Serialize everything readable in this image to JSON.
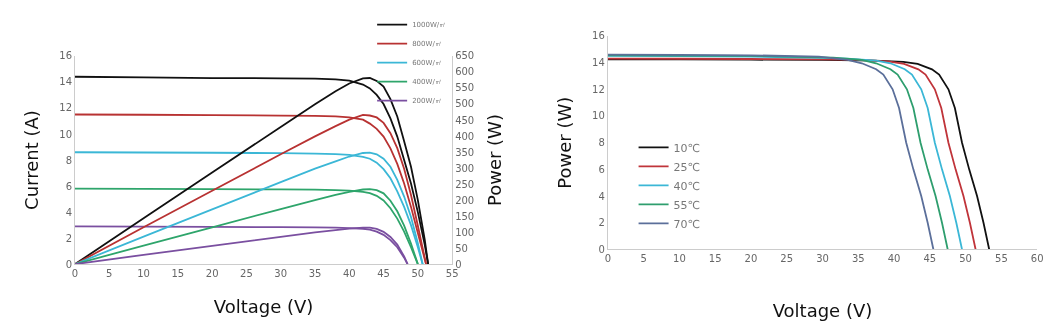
{
  "chart_data": [
    {
      "type": "line",
      "xlabel": "Voltage (V)",
      "ylabel": "Current (A)",
      "y2label": "Power (W)",
      "xlim": [
        0,
        55
      ],
      "xticks": [
        0,
        5,
        10,
        15,
        20,
        25,
        30,
        35,
        40,
        45,
        50,
        55
      ],
      "ylim": [
        0,
        16
      ],
      "yticks": [
        0,
        2,
        4,
        6,
        8,
        10,
        12,
        14,
        16
      ],
      "y2lim": [
        0,
        650
      ],
      "y2ticks": [
        0,
        50,
        100,
        150,
        200,
        250,
        300,
        350,
        400,
        450,
        500,
        550,
        600,
        650
      ],
      "legend": "top right",
      "marker": "none",
      "line_style": "solid",
      "series": [
        {
          "name": "1000W/㎡",
          "color": "#111111",
          "x": [
            0,
            10,
            20,
            30,
            35,
            38,
            40,
            42,
            43,
            44,
            45,
            46,
            47,
            48,
            49,
            50,
            51,
            51.5
          ],
          "values": [
            14.4,
            14.35,
            14.3,
            14.28,
            14.25,
            14.2,
            14.1,
            13.8,
            13.5,
            13.0,
            12.3,
            11.2,
            9.8,
            8.0,
            6.2,
            4.0,
            1.5,
            0
          ]
        },
        {
          "name": "800W/㎡",
          "color": "#b83232",
          "x": [
            0,
            10,
            20,
            30,
            35,
            38,
            40,
            42,
            43,
            44,
            45,
            46,
            47,
            48,
            49,
            50,
            51.2
          ],
          "values": [
            11.5,
            11.48,
            11.45,
            11.42,
            11.4,
            11.35,
            11.28,
            11.1,
            10.8,
            10.4,
            9.8,
            8.9,
            7.7,
            6.2,
            4.4,
            2.4,
            0
          ]
        },
        {
          "name": "600W/㎡",
          "color": "#3bb7d6",
          "x": [
            0,
            10,
            20,
            30,
            35,
            38,
            40,
            42,
            43,
            44,
            45,
            46,
            47,
            48,
            49,
            50,
            50.7
          ],
          "values": [
            8.6,
            8.58,
            8.56,
            8.53,
            8.5,
            8.46,
            8.4,
            8.25,
            8.1,
            7.8,
            7.3,
            6.6,
            5.6,
            4.4,
            3.0,
            1.3,
            0
          ]
        },
        {
          "name": "400W/㎡",
          "color": "#2ea56b",
          "x": [
            0,
            10,
            20,
            30,
            35,
            38,
            40,
            42,
            43,
            44,
            45,
            46,
            47,
            48,
            49,
            50
          ],
          "values": [
            5.8,
            5.78,
            5.76,
            5.74,
            5.72,
            5.69,
            5.65,
            5.55,
            5.45,
            5.25,
            4.9,
            4.3,
            3.5,
            2.5,
            1.3,
            0
          ]
        },
        {
          "name": "200W/㎡",
          "color": "#7a4fa0",
          "x": [
            0,
            10,
            20,
            30,
            35,
            38,
            40,
            42,
            43,
            44,
            45,
            46,
            47,
            48,
            48.5
          ],
          "values": [
            2.9,
            2.88,
            2.86,
            2.84,
            2.82,
            2.8,
            2.77,
            2.72,
            2.65,
            2.5,
            2.25,
            1.85,
            1.3,
            0.5,
            0
          ]
        },
        {
          "color": "#111111",
          "axis": "y2",
          "x": [
            0,
            10,
            20,
            30,
            35,
            38,
            40,
            42,
            43,
            44,
            45,
            46,
            47,
            48,
            49,
            50,
            51,
            51.5
          ],
          "values": [
            0,
            143,
            286,
            428,
            499,
            540,
            564,
            580,
            581,
            572,
            554,
            515,
            461,
            384,
            304,
            200,
            77,
            0
          ]
        },
        {
          "color": "#b83232",
          "axis": "y2",
          "x": [
            0,
            10,
            20,
            30,
            35,
            38,
            40,
            42,
            43,
            44,
            45,
            46,
            47,
            48,
            49,
            50,
            51.2
          ],
          "values": [
            0,
            115,
            229,
            343,
            399,
            431,
            451,
            466,
            464,
            458,
            441,
            409,
            362,
            298,
            216,
            120,
            0
          ]
        },
        {
          "color": "#3bb7d6",
          "axis": "y2",
          "x": [
            0,
            10,
            20,
            30,
            35,
            38,
            40,
            42,
            43,
            44,
            45,
            46,
            47,
            48,
            49,
            50,
            50.7
          ],
          "values": [
            0,
            86,
            171,
            256,
            298,
            321,
            336,
            347,
            348,
            343,
            329,
            304,
            263,
            211,
            147,
            65,
            0
          ]
        },
        {
          "color": "#2ea56b",
          "axis": "y2",
          "x": [
            0,
            10,
            20,
            30,
            35,
            38,
            40,
            42,
            43,
            44,
            45,
            46,
            47,
            48,
            49,
            50
          ],
          "values": [
            0,
            58,
            115,
            172,
            200,
            216,
            226,
            233,
            234,
            231,
            221,
            198,
            165,
            120,
            64,
            0
          ]
        },
        {
          "color": "#7a4fa0",
          "axis": "y2",
          "x": [
            0,
            10,
            20,
            30,
            35,
            38,
            40,
            42,
            43,
            44,
            45,
            46,
            47,
            48,
            48.5
          ],
          "values": [
            0,
            29,
            57,
            85,
            99,
            106,
            111,
            114,
            114,
            110,
            101,
            85,
            61,
            24,
            0
          ]
        }
      ]
    },
    {
      "type": "line",
      "xlabel": "Voltage (V)",
      "ylabel": "Power (W)",
      "xlim": [
        0,
        60
      ],
      "xticks": [
        0,
        5,
        10,
        15,
        20,
        25,
        30,
        35,
        40,
        45,
        50,
        55,
        60
      ],
      "ylim": [
        0,
        16
      ],
      "yticks": [
        0,
        2,
        4,
        6,
        8,
        10,
        12,
        14,
        16
      ],
      "legend": "left",
      "marker": "none",
      "line_style": "solid",
      "series": [
        {
          "name": "10℃",
          "color": "#111111",
          "x": [
            0,
            10,
            20,
            30,
            37.3,
            41.3,
            43.3,
            45.3,
            46.3,
            47.6,
            48.5,
            49.5,
            50.5,
            51.6,
            52.5,
            53.3
          ],
          "values": [
            14.25,
            14.24,
            14.22,
            14.2,
            14.15,
            14.05,
            13.9,
            13.5,
            13.1,
            12,
            10.6,
            8,
            6,
            4,
            2,
            0
          ]
        },
        {
          "name": "25℃",
          "color": "#c0343a",
          "x": [
            0,
            10,
            20,
            30,
            35.4,
            39.4,
            41.4,
            43.4,
            44.4,
            45.7,
            46.6,
            47.6,
            48.6,
            49.7,
            50.6,
            51.4
          ],
          "values": [
            14.3,
            14.29,
            14.27,
            14.24,
            14.2,
            14.08,
            13.9,
            13.5,
            13.1,
            12,
            10.6,
            8,
            6,
            4,
            2,
            0
          ]
        },
        {
          "name": "40℃",
          "color": "#3bb7d6",
          "x": [
            0,
            10,
            20,
            30,
            33.5,
            37.5,
            39.5,
            41.5,
            42.5,
            43.8,
            44.7,
            45.7,
            46.7,
            47.8,
            48.7,
            49.5
          ],
          "values": [
            14.5,
            14.48,
            14.45,
            14.35,
            14.3,
            14.15,
            13.95,
            13.5,
            13.1,
            12,
            10.6,
            8,
            6,
            4,
            2,
            0
          ]
        },
        {
          "name": "55℃",
          "color": "#2e9e6e",
          "x": [
            0,
            10,
            20,
            30,
            31.5,
            35.5,
            37.5,
            39.5,
            40.5,
            41.8,
            42.7,
            43.7,
            44.7,
            45.8,
            46.7,
            47.5
          ],
          "values": [
            14.55,
            14.53,
            14.5,
            14.4,
            14.38,
            14.2,
            13.95,
            13.5,
            13.1,
            12,
            10.6,
            8,
            6,
            4,
            2,
            0
          ]
        },
        {
          "name": "70℃",
          "color": "#5b6f9a",
          "x": [
            0,
            10,
            20,
            29.5,
            33.5,
            35.5,
            37.5,
            38.5,
            39.8,
            40.7,
            41.7,
            42.7,
            43.8,
            44.7,
            45.5
          ],
          "values": [
            14.6,
            14.58,
            14.55,
            14.45,
            14.2,
            13.95,
            13.5,
            13.1,
            12,
            10.6,
            8,
            6,
            4,
            2,
            0
          ]
        }
      ]
    }
  ]
}
